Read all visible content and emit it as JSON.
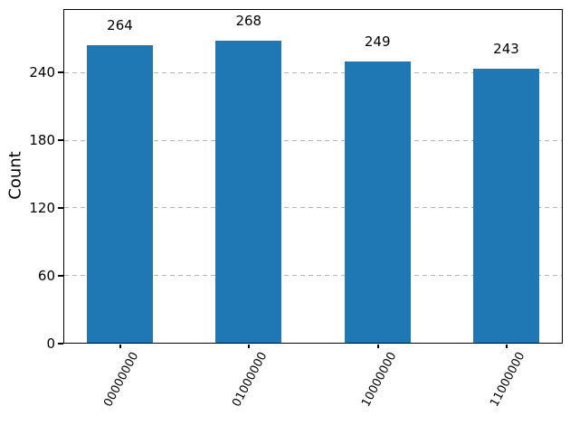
{
  "chart_data": {
    "type": "bar",
    "title": "",
    "xlabel": "",
    "ylabel": "Count",
    "categories": [
      "00000000",
      "01000000",
      "10000000",
      "11000000"
    ],
    "values": [
      264,
      268,
      249,
      243
    ],
    "bar_labels": [
      "264",
      "268",
      "249",
      "243"
    ],
    "yticks": [
      0,
      60,
      120,
      180,
      240
    ],
    "ylim": [
      0,
      295
    ],
    "grid": "horizontal-dashed",
    "legend": "none",
    "bar_color": "#1f77b4",
    "grid_color": "#b4b4b4",
    "axis_color": "#000000",
    "x_tick_rotation_deg": 62
  }
}
